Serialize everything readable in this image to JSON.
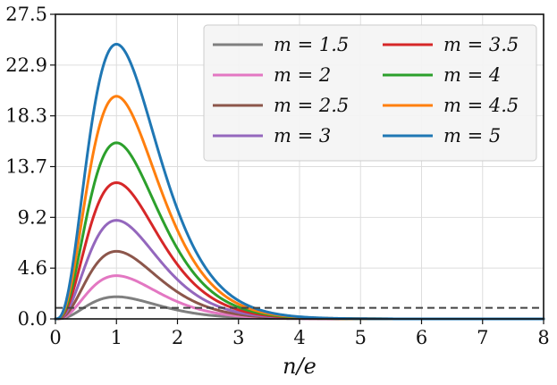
{
  "chart_data": {
    "type": "line",
    "title": "",
    "xlabel": "n/e",
    "ylabel": "",
    "xlim": [
      0,
      8
    ],
    "ylim": [
      0,
      27.5
    ],
    "xticks": [
      "0",
      "1",
      "2",
      "3",
      "4",
      "5",
      "6",
      "7",
      "8"
    ],
    "yticks": [
      "0.0",
      "4.6",
      "9.2",
      "13.7",
      "18.3",
      "22.9",
      "27.5"
    ],
    "ytick_values": [
      0,
      4.583,
      9.167,
      13.75,
      18.333,
      22.917,
      27.5
    ],
    "grid": true,
    "legend_position": "top-right",
    "legend_columns": 2,
    "reference_line": {
      "y": 1.0,
      "style": "dashed",
      "color": "#444444"
    },
    "series": [
      {
        "name": "m = 1.5",
        "color": "#7f7f7f",
        "x_peak": 1,
        "y_peak": 2.0
      },
      {
        "name": "m = 2",
        "color": "#e377c2",
        "x_peak": 1,
        "y_peak": 3.9
      },
      {
        "name": "m = 2.5",
        "color": "#8c564b",
        "x_peak": 1,
        "y_peak": 6.1
      },
      {
        "name": "m = 3",
        "color": "#9467bd",
        "x_peak": 1,
        "y_peak": 8.9
      },
      {
        "name": "m = 3.5",
        "color": "#d62728",
        "x_peak": 1,
        "y_peak": 12.3
      },
      {
        "name": "m = 4",
        "color": "#2ca02c",
        "x_peak": 1,
        "y_peak": 15.9
      },
      {
        "name": "m = 4.5",
        "color": "#ff7f0e",
        "x_peak": 1,
        "y_peak": 20.1
      },
      {
        "name": "m = 5",
        "color": "#1f77b4",
        "x_peak": 1,
        "y_peak": 24.8
      }
    ]
  }
}
